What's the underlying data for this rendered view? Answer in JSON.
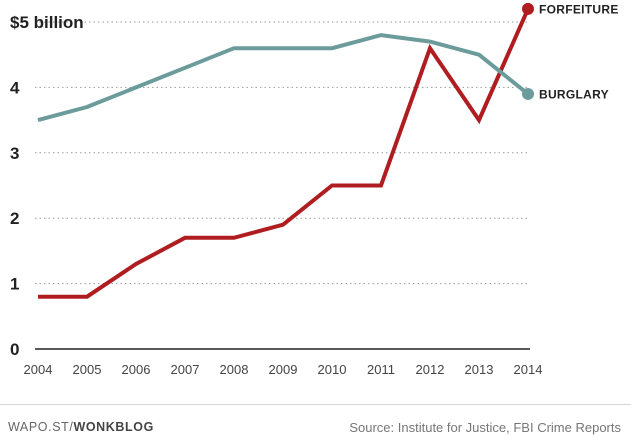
{
  "chart_data": {
    "type": "line",
    "x": [
      2004,
      2005,
      2006,
      2007,
      2008,
      2009,
      2010,
      2011,
      2012,
      2013,
      2014
    ],
    "x_tick_labels": [
      "2004",
      "2005",
      "2006",
      "2007",
      "2008",
      "2009",
      "2010",
      "2011",
      "2012",
      "2013",
      "2014"
    ],
    "y_tick_labels": [
      "0",
      "1",
      "2",
      "3",
      "4",
      "$5 billion"
    ],
    "y_ticks": [
      0,
      1,
      2,
      3,
      4,
      5
    ],
    "ylim": [
      0,
      5.2
    ],
    "grid": true,
    "series": [
      {
        "name": "FORFEITURE",
        "color": "#b01d20",
        "values": [
          0.8,
          0.8,
          1.3,
          1.7,
          1.7,
          1.9,
          2.5,
          2.5,
          4.6,
          3.5,
          5.2
        ]
      },
      {
        "name": "BURGLARY",
        "color": "#6b9b9a",
        "values": [
          3.5,
          3.7,
          4.0,
          4.3,
          4.6,
          4.6,
          4.6,
          4.8,
          4.7,
          4.5,
          3.9
        ]
      }
    ]
  },
  "footer": {
    "credit_prefix": "WAPO.ST/",
    "credit_brand": "WONKBLOG",
    "source": "Source: Institute for Justice, FBI Crime Reports"
  }
}
